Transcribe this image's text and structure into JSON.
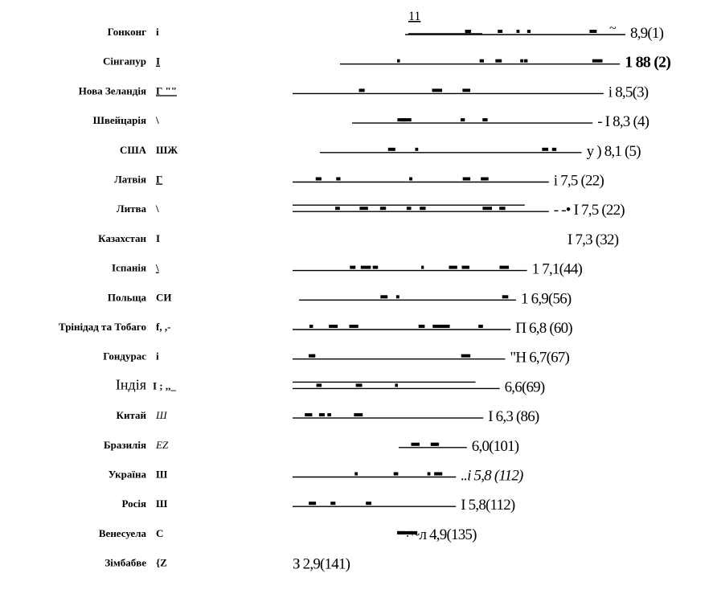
{
  "chart_data": {
    "type": "bar",
    "orientation": "horizontal",
    "categories": [
      "Гонконг",
      "Сінгапур",
      "Нова Зеландія",
      "Швейцарія",
      "США",
      "Латвія",
      "Литва",
      "Казахстан",
      "Іспанія",
      "Польща",
      "Трінідад та Тобаго",
      "Гондурас",
      "Індія",
      "Китай",
      "Бразилія",
      "Україна",
      "Росія",
      "Венесуела",
      "Зімбабве"
    ],
    "marks": [
      "і",
      "І",
      "Г \"\"",
      "\\",
      "ШЖ",
      "Г",
      "\\",
      "І",
      "\\",
      "СИ",
      "f, ,-",
      "і",
      "І ; ,,_",
      "Ш",
      "EZ",
      "Ш",
      "Ш",
      "С",
      "{Z"
    ],
    "values": [
      8.9,
      8.8,
      8.5,
      8.3,
      8.1,
      7.5,
      7.5,
      7.3,
      7.1,
      6.9,
      6.8,
      6.7,
      6.6,
      6.3,
      6.0,
      5.8,
      5.8,
      4.9,
      2.9
    ],
    "ranks": [
      1,
      2,
      3,
      4,
      5,
      22,
      22,
      32,
      44,
      56,
      60,
      67,
      69,
      86,
      101,
      112,
      112,
      135,
      141
    ],
    "value_labels": [
      "8,9(1)",
      "1 88 (2)",
      "i 8,5(3)",
      "- І 8,3 (4)",
      "у ) 8,1 (5)",
      "i 7,5 (22)",
      "- -• I 7,5 (22)",
      "І 7,3 (32)",
      "1 7,1(44)",
      "1 6,9(56)",
      "П 6,8 (60)",
      "\"Н 6,7(67)",
      "6,6(69)",
      "І 6,3 (86)",
      "6,0(101)",
      "..i 5,8 (112)",
      "І 5,8(112)",
      "~л 4,9(135)",
      "З 2,9(141)"
    ],
    "top_mark": "11",
    "noise_glyph": "~"
  }
}
